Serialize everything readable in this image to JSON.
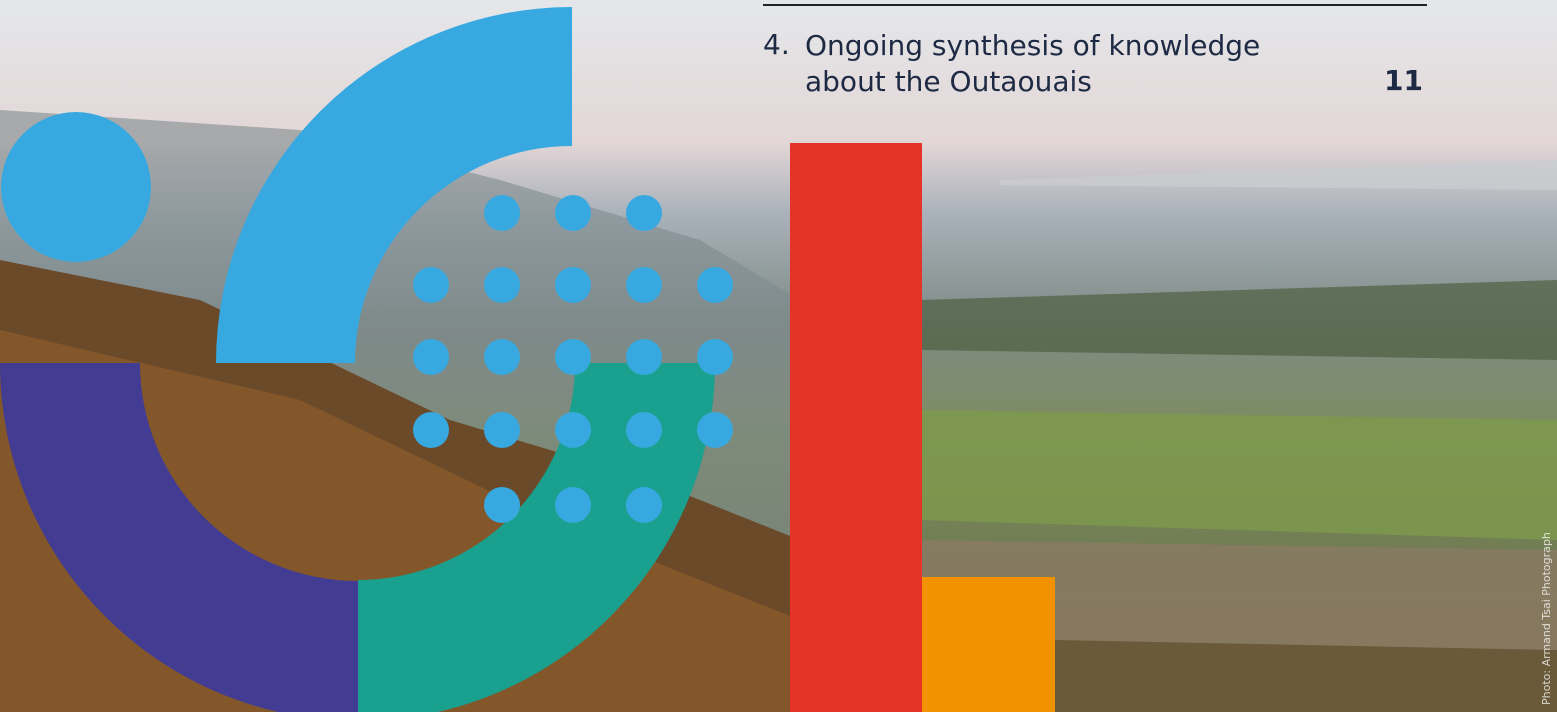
{
  "toc_entry": {
    "number": "4.",
    "title_lines": [
      "Ongoing synthesis of knowledge",
      "about the Outaouais"
    ],
    "page": 11
  },
  "photo_credit": "Photo: Armand Tsai Photograph"
}
